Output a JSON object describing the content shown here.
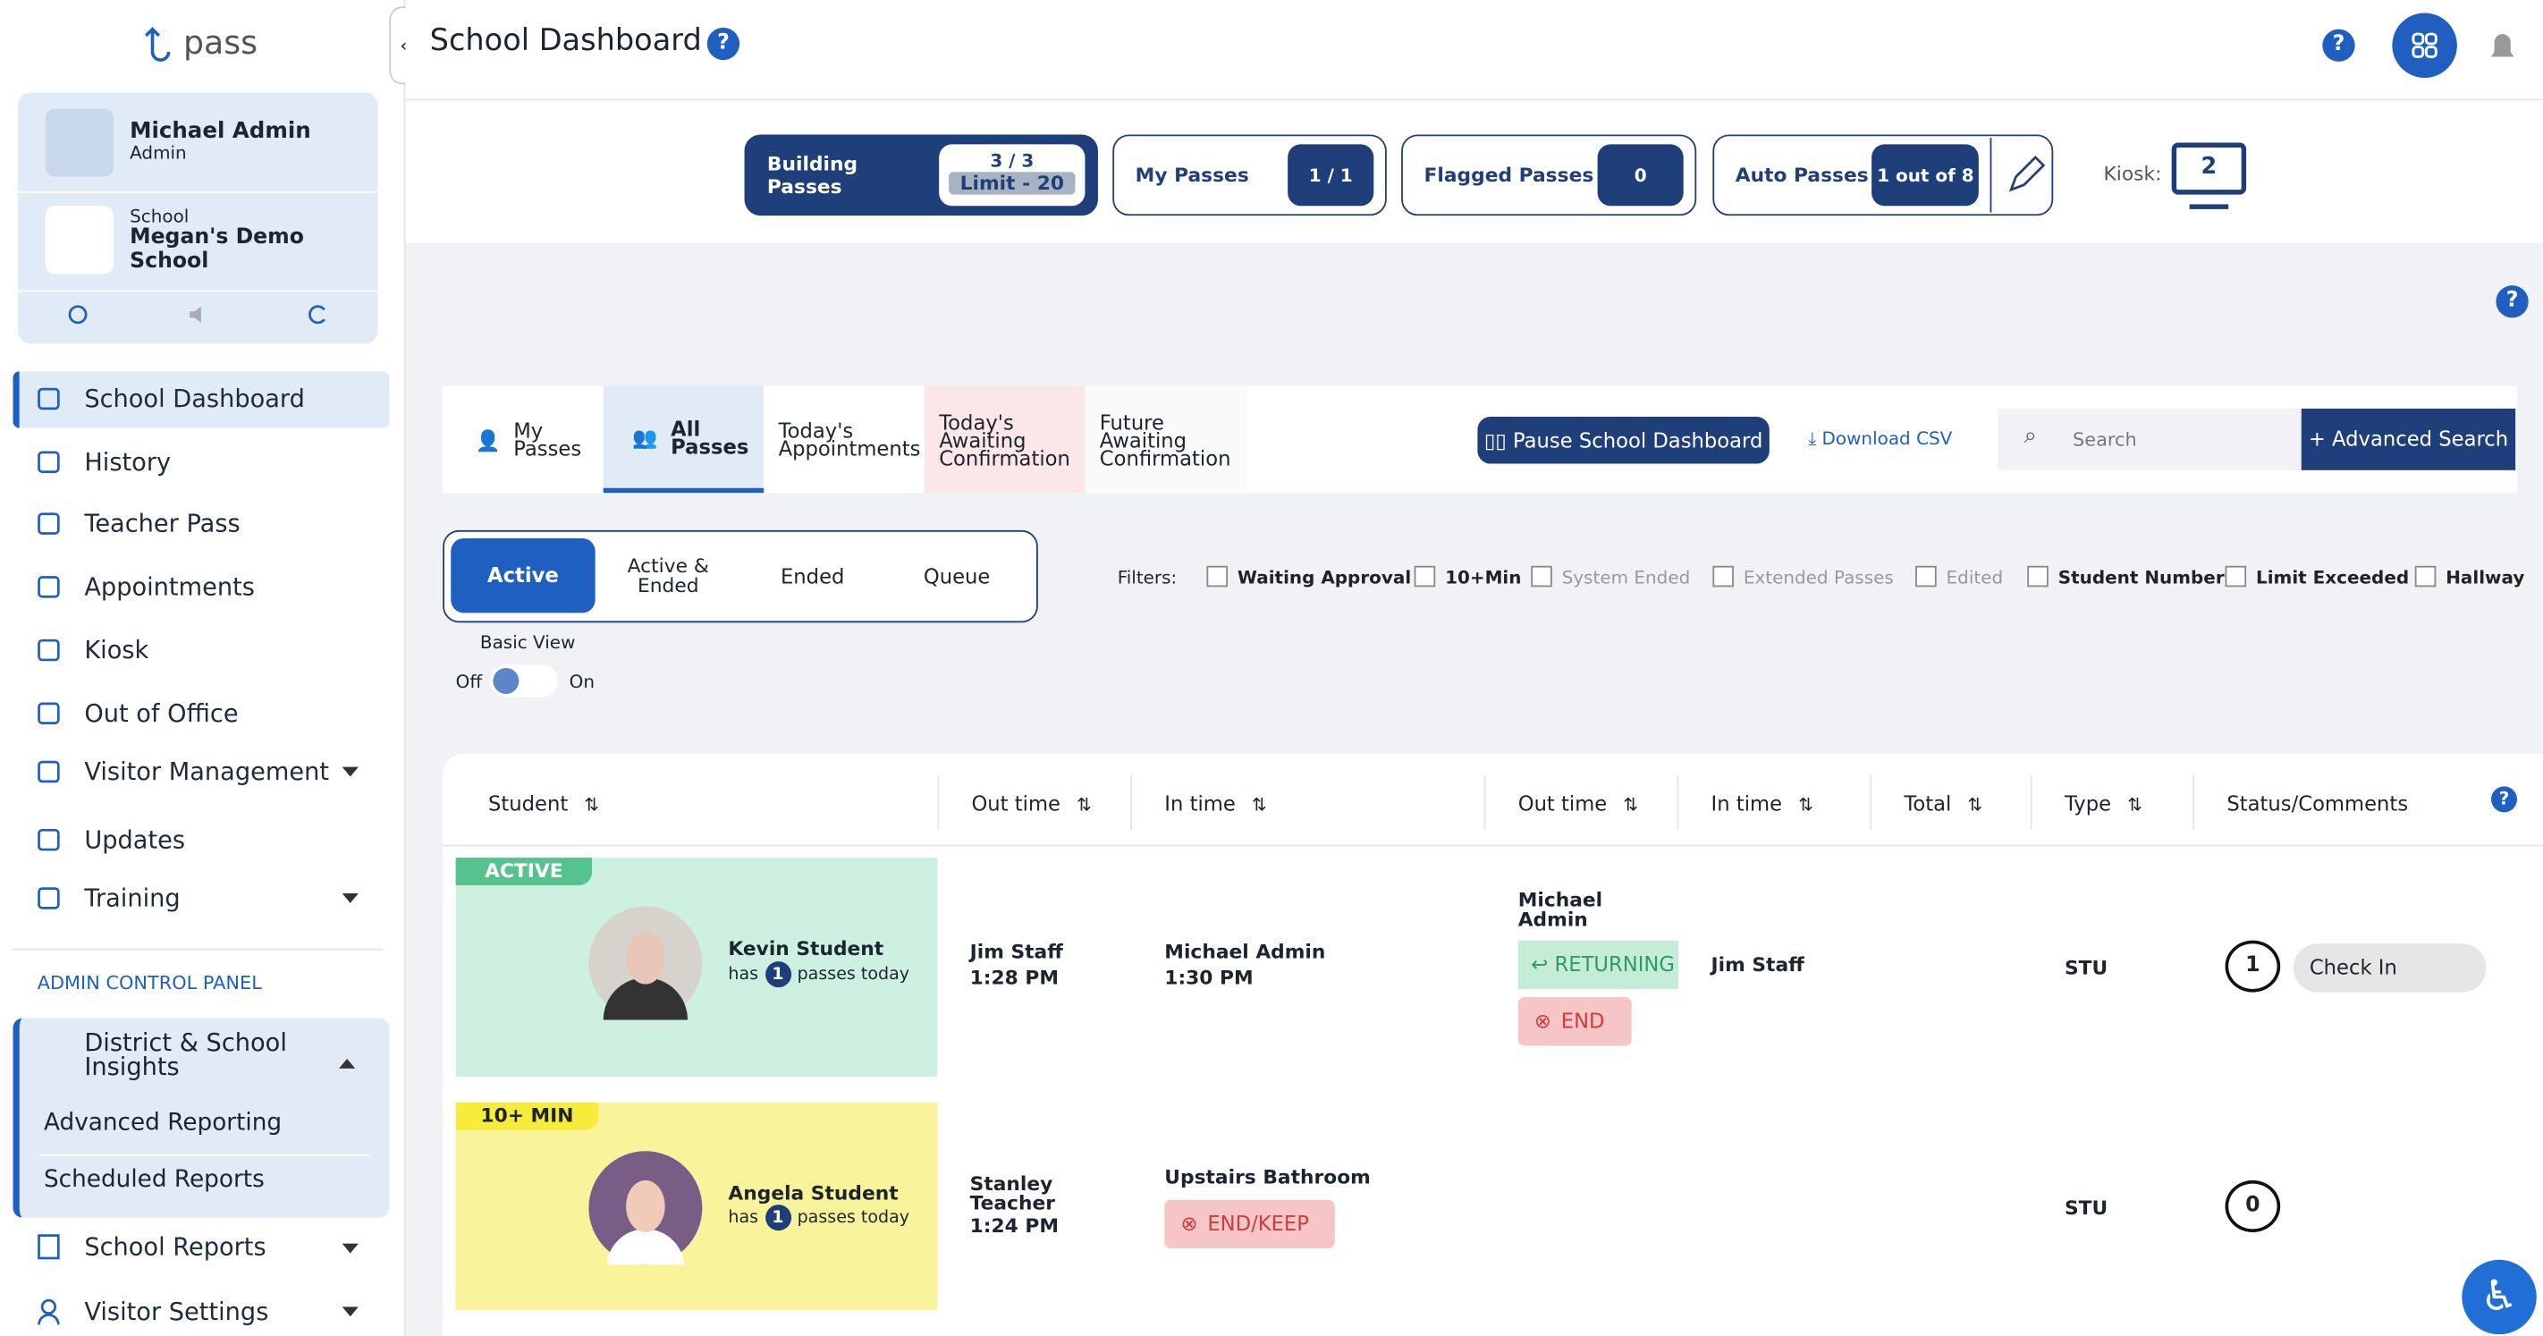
{
  "sidebar": {
    "logo": "pass",
    "user": {
      "name": "Michael Admin",
      "role": "Admin"
    },
    "school": {
      "label": "School",
      "name": "Megan's Demo School"
    },
    "nav": [
      "School Dashboard",
      "History",
      "Teacher Pass",
      "Appointments",
      "Kiosk",
      "Out of Office",
      "Visitor Management",
      "Updates",
      "Training"
    ],
    "admin_label": "ADMIN CONTROL PANEL",
    "insights": "District & School Insights",
    "insights_items": [
      "Advanced Reporting",
      "Scheduled Reports"
    ],
    "more": [
      "School Reports",
      "Visitor Settings"
    ]
  },
  "header": {
    "title": "School Dashboard"
  },
  "counters": [
    {
      "label": "Building Passes",
      "count": "3 / 3",
      "limit": "Limit - 20"
    },
    {
      "label": "My Passes",
      "count": "1 / 1"
    },
    {
      "label": "Flagged Passes",
      "count": "0"
    },
    {
      "label": "Auto Passes",
      "count": "1 out of 8"
    }
  ],
  "kiosk": {
    "label": "Kiosk:",
    "count": "2"
  },
  "tabs": [
    "My Passes",
    "All Passes",
    "Today's Appointments",
    "Today's Awaiting Confirmation",
    "Future Awaiting Confirmation"
  ],
  "actions": {
    "pause": "Pause School Dashboard",
    "download": "Download CSV",
    "search_placeholder": "Search",
    "advanced": "Advanced Search"
  },
  "views": [
    "Active",
    "Active & Ended",
    "Ended",
    "Queue"
  ],
  "basic_view": {
    "label": "Basic View",
    "off": "Off",
    "on": "On"
  },
  "filters": {
    "label": "Filters:",
    "items": [
      "Waiting Approval",
      "10+Min",
      "System Ended",
      "Extended Passes",
      "Edited",
      "Student Number",
      "Limit Exceeded",
      "Hallway"
    ]
  },
  "table": {
    "columns": [
      "Student",
      "Out time",
      "In time",
      "Out time",
      "In time",
      "Total",
      "Type",
      "Status/Comments"
    ],
    "rows": [
      {
        "badge": "ACTIVE",
        "name": "Kevin Student",
        "has": "has",
        "count": "1",
        "passes": "passes today",
        "out_name": "Jim Staff",
        "out_time": "1:28 PM",
        "in_name": "Michael Admin",
        "in_time": "1:30 PM",
        "out2_name": "Michael Admin",
        "returning": "RETURNING",
        "end": "END",
        "in2_name": "Jim Staff",
        "type": "STU",
        "comments": "1",
        "action": "Check In"
      },
      {
        "badge": "10+ MIN",
        "name": "Angela Student",
        "has": "has",
        "count": "1",
        "passes": "passes today",
        "out_name": "Stanley Teacher",
        "out_time": "1:24 PM",
        "in_name": "Upstairs Bathroom",
        "end": "END/KEEP",
        "type": "STU",
        "comments": "0"
      }
    ]
  }
}
